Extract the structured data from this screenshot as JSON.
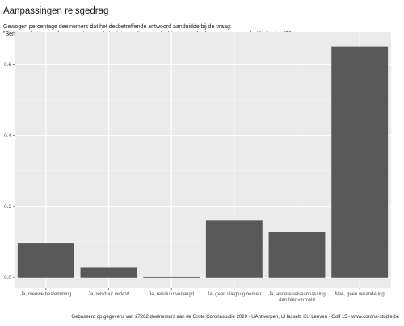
{
  "chart_data": {
    "type": "bar",
    "title": "Aanpassingen reisgedrag",
    "subtitle_lines": [
      "Gewogen percentage deelnemers dat het desbetreffende antwoord aanduidde bij de vraag:",
      "\"Ben je op basis van de informatie van de laatste week van gedachten veranderd over reizen naar het buitenland?\""
    ],
    "caption": "Gebaseerd op gegevens van 27262 deelnemers aan de Grote Coronastudie 2020 - UAntwerpen, UHasselt, KU Leuven - Golf 15 - www.corona-studie.be",
    "categories": [
      [
        "Ja, nieuwe bestemming"
      ],
      [
        "Ja, reisduur verkort"
      ],
      [
        "Ja, reisduur verlengd"
      ],
      [
        "Ja, geen vliegtuig nemen"
      ],
      [
        "Ja, andere reisaanpassing",
        "dan hier vermeld"
      ],
      [
        "Nee, geen verandering"
      ]
    ],
    "values": [
      0.097,
      0.028,
      0.002,
      0.16,
      0.128,
      0.65
    ],
    "ylim": [
      -0.03,
      0.69
    ],
    "yticks": [
      0.0,
      0.2,
      0.4,
      0.6
    ],
    "ytick_labels": [
      "0.0",
      "0.2",
      "0.4",
      "0.6"
    ],
    "grid": true,
    "colors": {
      "bar": "#595959",
      "panel": "#ebebeb",
      "grid_major": "#ffffff",
      "grid_minor": "#f5f5f5"
    }
  }
}
